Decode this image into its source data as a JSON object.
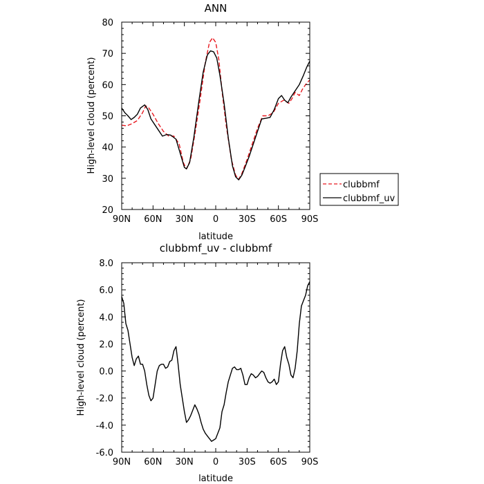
{
  "chart_data": [
    {
      "type": "line",
      "title": "ANN",
      "xlabel": "latitude",
      "ylabel": "High-level cloud (percent)",
      "x_tick_labels": [
        "90N",
        "60N",
        "30N",
        "0",
        "30S",
        "60S",
        "90S"
      ],
      "x_ticks": [
        90,
        60,
        30,
        0,
        -30,
        -60,
        -90
      ],
      "xlim": [
        90,
        -90
      ],
      "ylim": [
        20,
        80
      ],
      "y_ticks": [
        20,
        30,
        40,
        50,
        60,
        70,
        80
      ],
      "y_tick_labels": [
        "20",
        "30",
        "40",
        "50",
        "60",
        "70",
        "80"
      ],
      "legend_position": "right",
      "series": [
        {
          "name": "clubbmf",
          "color": "#e8161d",
          "dash": "dashed",
          "points": [
            [
              90,
              47
            ],
            [
              85,
              46.8
            ],
            [
              80,
              47.5
            ],
            [
              75,
              48.5
            ],
            [
              70,
              51
            ],
            [
              67,
              53.2
            ],
            [
              64,
              52.5
            ],
            [
              60,
              50.5
            ],
            [
              55,
              47.5
            ],
            [
              50,
              45
            ],
            [
              45,
              43.5
            ],
            [
              40,
              43.5
            ],
            [
              35,
              41
            ],
            [
              31,
              35
            ],
            [
              28,
              33
            ],
            [
              24,
              36
            ],
            [
              20,
              44
            ],
            [
              15,
              55
            ],
            [
              10,
              67
            ],
            [
              6,
              73.5
            ],
            [
              3,
              75
            ],
            [
              0,
              73.5
            ],
            [
              -3,
              68
            ],
            [
              -6,
              58
            ],
            [
              -10,
              47
            ],
            [
              -15,
              36
            ],
            [
              -19,
              31
            ],
            [
              -22,
              29.7
            ],
            [
              -25,
              31.5
            ],
            [
              -30,
              36
            ],
            [
              -35,
              41
            ],
            [
              -40,
              46
            ],
            [
              -45,
              50
            ],
            [
              -50,
              50
            ],
            [
              -55,
              51
            ],
            [
              -60,
              54
            ],
            [
              -65,
              55
            ],
            [
              -70,
              54
            ],
            [
              -73,
              55.5
            ],
            [
              -76,
              57.5
            ],
            [
              -80,
              56.5
            ],
            [
              -83,
              58.5
            ],
            [
              -86,
              60
            ],
            [
              -90,
              61.5
            ]
          ]
        },
        {
          "name": "clubbmf_uv",
          "color": "#000000",
          "dash": "solid",
          "points": [
            [
              90,
              52.5
            ],
            [
              87,
              51
            ],
            [
              84,
              50
            ],
            [
              81,
              48.8
            ],
            [
              78,
              49.5
            ],
            [
              75,
              50.5
            ],
            [
              72,
              52.5
            ],
            [
              68,
              53.5
            ],
            [
              65,
              52
            ],
            [
              62,
              49
            ],
            [
              58,
              47
            ],
            [
              55,
              45.5
            ],
            [
              51,
              43.5
            ],
            [
              47,
              44
            ],
            [
              43,
              43.8
            ],
            [
              38,
              42.5
            ],
            [
              34,
              38
            ],
            [
              30,
              33.5
            ],
            [
              28,
              33
            ],
            [
              25,
              35
            ],
            [
              21,
              43
            ],
            [
              16,
              55
            ],
            [
              12,
              64
            ],
            [
              8,
              69.5
            ],
            [
              5,
              70.8
            ],
            [
              2,
              70.5
            ],
            [
              -1,
              68.5
            ],
            [
              -4,
              63
            ],
            [
              -8,
              54
            ],
            [
              -12,
              43
            ],
            [
              -16,
              34
            ],
            [
              -19,
              30.5
            ],
            [
              -22,
              29.5
            ],
            [
              -25,
              31
            ],
            [
              -28,
              33.5
            ],
            [
              -32,
              37
            ],
            [
              -36,
              41
            ],
            [
              -40,
              45
            ],
            [
              -44,
              49
            ],
            [
              -48,
              49.2
            ],
            [
              -52,
              49.5
            ],
            [
              -56,
              52
            ],
            [
              -60,
              55.5
            ],
            [
              -63,
              56.5
            ],
            [
              -66,
              55
            ],
            [
              -69,
              54.2
            ],
            [
              -72,
              56
            ],
            [
              -76,
              58
            ],
            [
              -80,
              60
            ],
            [
              -84,
              63
            ],
            [
              -87,
              65.5
            ],
            [
              -90,
              67.5
            ]
          ]
        }
      ]
    },
    {
      "type": "line",
      "title": "clubbmf_uv - clubbmf",
      "xlabel": "latitude",
      "ylabel": "High-level cloud (percent)",
      "x_tick_labels": [
        "90N",
        "60N",
        "30N",
        "0",
        "30S",
        "60S",
        "90S"
      ],
      "x_ticks": [
        90,
        60,
        30,
        0,
        -30,
        -60,
        -90
      ],
      "xlim": [
        90,
        -90
      ],
      "ylim": [
        -6,
        8
      ],
      "y_ticks": [
        -6,
        -4,
        -2,
        0,
        2,
        4,
        6,
        8
      ],
      "y_tick_labels": [
        "-6.0",
        "-4.0",
        "-2.0",
        "0.0",
        "2.0",
        "4.0",
        "6.0",
        "8.0"
      ],
      "series": [
        {
          "name": "",
          "color": "#000000",
          "dash": "solid",
          "points": [
            [
              90,
              5.5
            ],
            [
              88,
              5
            ],
            [
              86,
              3.5
            ],
            [
              84,
              3
            ],
            [
              82,
              2
            ],
            [
              80,
              1
            ],
            [
              78,
              0.4
            ],
            [
              76,
              0.9
            ],
            [
              74,
              1.1
            ],
            [
              72,
              0.5
            ],
            [
              70,
              0.5
            ],
            [
              68,
              0
            ],
            [
              66,
              -1
            ],
            [
              64,
              -1.8
            ],
            [
              62,
              -2.2
            ],
            [
              60,
              -2
            ],
            [
              58,
              -1
            ],
            [
              56,
              0
            ],
            [
              54,
              0.4
            ],
            [
              52,
              0.5
            ],
            [
              50,
              0.5
            ],
            [
              48,
              0.2
            ],
            [
              46,
              0.3
            ],
            [
              44,
              0.7
            ],
            [
              42,
              0.8
            ],
            [
              40,
              1.5
            ],
            [
              38,
              1.8
            ],
            [
              36,
              0.5
            ],
            [
              34,
              -1
            ],
            [
              32,
              -2
            ],
            [
              30,
              -3
            ],
            [
              28,
              -3.8
            ],
            [
              26,
              -3.6
            ],
            [
              24,
              -3.3
            ],
            [
              22,
              -2.9
            ],
            [
              20,
              -2.5
            ],
            [
              18,
              -2.8
            ],
            [
              16,
              -3.2
            ],
            [
              14,
              -3.8
            ],
            [
              12,
              -4.3
            ],
            [
              10,
              -4.6
            ],
            [
              8,
              -4.8
            ],
            [
              6,
              -5
            ],
            [
              4,
              -5.2
            ],
            [
              2,
              -5.1
            ],
            [
              0,
              -5
            ],
            [
              -2,
              -4.6
            ],
            [
              -4,
              -4.2
            ],
            [
              -6,
              -3
            ],
            [
              -8,
              -2.5
            ],
            [
              -10,
              -1.6
            ],
            [
              -12,
              -0.8
            ],
            [
              -14,
              -0.3
            ],
            [
              -16,
              0.2
            ],
            [
              -18,
              0.3
            ],
            [
              -20,
              0.1
            ],
            [
              -22,
              0.1
            ],
            [
              -24,
              0.2
            ],
            [
              -26,
              -0.3
            ],
            [
              -28,
              -1
            ],
            [
              -30,
              -1
            ],
            [
              -32,
              -0.5
            ],
            [
              -34,
              -0.2
            ],
            [
              -36,
              -0.3
            ],
            [
              -38,
              -0.5
            ],
            [
              -40,
              -0.4
            ],
            [
              -42,
              -0.2
            ],
            [
              -44,
              0
            ],
            [
              -46,
              -0.1
            ],
            [
              -48,
              -0.5
            ],
            [
              -50,
              -0.8
            ],
            [
              -52,
              -0.9
            ],
            [
              -54,
              -0.8
            ],
            [
              -56,
              -0.6
            ],
            [
              -58,
              -1
            ],
            [
              -60,
              -0.8
            ],
            [
              -62,
              0.5
            ],
            [
              -64,
              1.5
            ],
            [
              -66,
              1.8
            ],
            [
              -68,
              1
            ],
            [
              -70,
              0.5
            ],
            [
              -72,
              -0.3
            ],
            [
              -74,
              -0.5
            ],
            [
              -76,
              0.2
            ],
            [
              -78,
              1.5
            ],
            [
              -80,
              3.5
            ],
            [
              -82,
              4.8
            ],
            [
              -84,
              5.2
            ],
            [
              -86,
              5.6
            ],
            [
              -88,
              6.3
            ],
            [
              -90,
              6.6
            ]
          ]
        }
      ]
    }
  ]
}
